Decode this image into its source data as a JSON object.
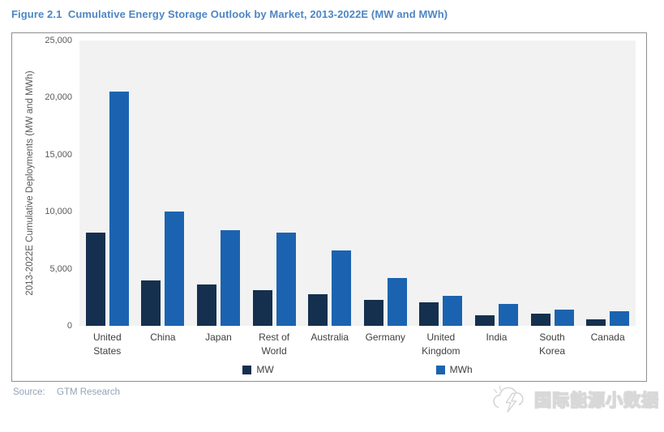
{
  "figure_title": "Figure 2.1  Cumulative Energy Storage Outlook by Market, 2013-2022E (MW and MWh)",
  "source": {
    "label": "Source:",
    "value": "GTM Research"
  },
  "watermark": {
    "text": "国际能源小数据",
    "icon": "cloud-lightning-logo"
  },
  "colors": {
    "title_blue": "#4d86c4",
    "mw_bar": "#15304e",
    "mwh_bar": "#1b63b0",
    "plot_background": "#f2f2f2",
    "axis_text": "#595959",
    "category_text": "#404040",
    "source_text": "#92a3b6",
    "box_border": "#8f8f8f"
  },
  "chart_data": {
    "type": "bar",
    "title": "Cumulative Energy Storage Outlook by Market, 2013-2022E (MW and MWh)",
    "xlabel": "",
    "ylabel": "2013-2022E Cumulative Deployments (MW and MWh)",
    "ylim": [
      0,
      25000
    ],
    "yticks": [
      0,
      5000,
      10000,
      15000,
      20000,
      25000
    ],
    "ytick_labels": [
      "0",
      "5,000",
      "10,000",
      "15,000",
      "20,000",
      "25,000"
    ],
    "grid": false,
    "legend_position": "bottom",
    "categories": [
      "United\nStates",
      "China",
      "Japan",
      "Rest of\nWorld",
      "Australia",
      "Germany",
      "United\nKingdom",
      "India",
      "South\nKorea",
      "Canada"
    ],
    "series": [
      {
        "name": "MW",
        "color": "#15304e",
        "values": [
          8200,
          3950,
          3600,
          3100,
          2800,
          2300,
          2050,
          950,
          1050,
          550
        ]
      },
      {
        "name": "MWh",
        "color": "#1b63b0",
        "values": [
          20500,
          10000,
          8400,
          8200,
          6600,
          4200,
          2650,
          1900,
          1450,
          1300
        ]
      }
    ]
  }
}
